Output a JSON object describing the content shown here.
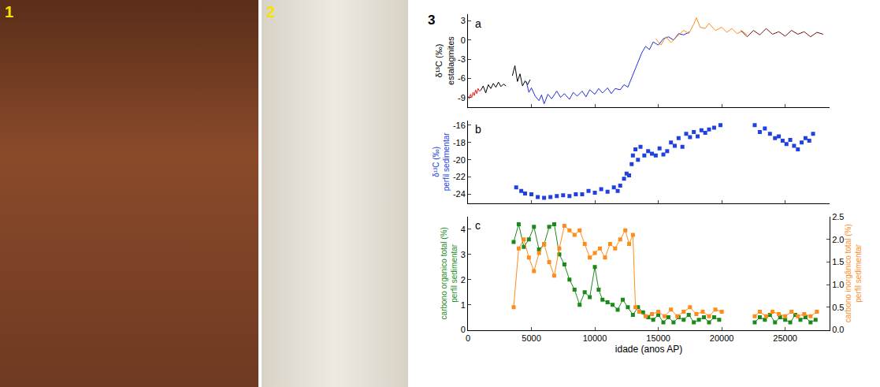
{
  "figure_labels": [
    "1",
    "2",
    "3"
  ],
  "chart_data": [
    {
      "type": "line",
      "label": "a",
      "y_label": [
        "δ¹³C (‰)",
        "estalagmites"
      ],
      "xlim": [
        0,
        28500
      ],
      "xticks": [
        0,
        5000,
        10000,
        15000,
        20000,
        25000
      ],
      "ylim": [
        -10.5,
        4
      ],
      "yticks": [
        -9,
        -6,
        -3,
        0,
        3
      ],
      "tick_labels": "y",
      "grid": false,
      "series": [
        {
          "color": "#e8201c",
          "x": [
            0,
            100,
            200,
            300,
            400,
            500,
            600,
            700,
            800,
            900,
            1000
          ],
          "values": [
            -8.8,
            -9.2,
            -8.5,
            -9.0,
            -8.2,
            -8.7,
            -7.8,
            -8.4,
            -7.6,
            -8.0,
            -7.9
          ]
        },
        {
          "color": "#000000",
          "x": [
            1000,
            1200,
            1400,
            1600,
            1800,
            2000,
            2200,
            2400,
            2600,
            2800,
            3000,
            3200,
            3500,
            3700,
            3900,
            4100,
            4300,
            4500,
            4700,
            4900
          ],
          "values": [
            -7.9,
            -7.2,
            -8.3,
            -7.0,
            -7.6,
            -6.8,
            -7.4,
            -6.6,
            -7.3,
            -6.9,
            -7.2,
            null,
            -5.6,
            -4.0,
            -6.5,
            -5.3,
            -7.2,
            -6.4,
            -7.0,
            -6.2
          ]
        },
        {
          "color": "#1f2fd8",
          "x": [
            4600,
            4800,
            5000,
            5300,
            5600,
            5800,
            6000,
            6300,
            6600,
            7000,
            7300,
            7600,
            8000,
            8300,
            8600,
            9000,
            9300,
            9600,
            10000,
            10300,
            10600,
            11000,
            11300,
            11600,
            12000,
            12300,
            12600,
            12900,
            13200,
            13500,
            13700,
            14000,
            14300,
            14600,
            15000,
            15400,
            15800,
            16200,
            16600,
            17000,
            17500
          ],
          "values": [
            -6.5,
            -8.2,
            -7.5,
            -8.8,
            -9.5,
            -8.6,
            -10.0,
            -8.5,
            -9.2,
            -8.0,
            -9.0,
            -8.4,
            -9.3,
            -8.2,
            -8.8,
            -8.0,
            -8.9,
            -7.8,
            -8.5,
            -7.6,
            -8.3,
            -7.5,
            -8.4,
            -7.6,
            -7.8,
            -7.0,
            -7.4,
            -6.0,
            -4.5,
            -3.0,
            -2.0,
            -1.0,
            -1.5,
            -0.3,
            -0.8,
            0.2,
            0.5,
            0.0,
            1.0,
            0.8,
            1.3
          ]
        },
        {
          "color": "#ff8c1a",
          "x": [
            14800,
            15200,
            15600,
            16000,
            16500,
            17000,
            17400,
            17800,
            18000,
            18300,
            18700,
            19000,
            19500,
            20000,
            20400,
            20800,
            21200,
            21600,
            22000
          ],
          "values": [
            0.2,
            -0.8,
            0.5,
            -0.4,
            0.6,
            1.5,
            1.0,
            2.5,
            3.5,
            2.0,
            1.8,
            2.6,
            1.5,
            2.0,
            1.2,
            1.8,
            1.0,
            1.4,
            0.8
          ]
        },
        {
          "color": "#7a1010",
          "x": [
            21500,
            22000,
            22500,
            23000,
            23500,
            24000,
            24500,
            25000,
            25500,
            26000,
            26500,
            27000,
            27500,
            28000
          ],
          "values": [
            1.5,
            0.5,
            1.5,
            0.8,
            1.8,
            0.9,
            1.3,
            0.6,
            1.5,
            0.9,
            1.3,
            0.5,
            1.2,
            0.9
          ]
        }
      ]
    },
    {
      "type": "scatter",
      "label": "b",
      "y_label": [
        "δ¹³C (‰)",
        "perfil sedimentar"
      ],
      "marker": "square",
      "xlim": [
        0,
        28500
      ],
      "xticks": [
        0,
        5000,
        10000,
        15000,
        20000,
        25000
      ],
      "ylim": [
        -25,
        -15.5
      ],
      "yticks": [
        -24,
        -22,
        -20,
        -18,
        -16
      ],
      "tick_labels": "y",
      "grid": false,
      "series": [
        {
          "color": "#2040e0",
          "x": [
            3800,
            4200,
            4500,
            5000,
            5500,
            6000,
            6500,
            7000,
            7500,
            8000,
            8500,
            9000,
            9500,
            10000,
            10500,
            11000,
            11500,
            11800,
            12000,
            12300,
            12500,
            12700,
            12900,
            13000,
            13200,
            13400,
            13600,
            13900,
            14200,
            14500,
            14800,
            15100,
            15400,
            15700,
            16000,
            16300,
            16600,
            16900,
            17200,
            17500,
            17800,
            18100,
            18400,
            18700,
            19000,
            19400,
            19900,
            22600,
            23000,
            23400,
            23800,
            24200,
            24500,
            24800,
            25100,
            25400,
            25700,
            26000,
            26300,
            26600,
            26900,
            27200
          ],
          "values": [
            -23.2,
            -23.6,
            -23.9,
            -24.0,
            -24.3,
            -24.4,
            -24.3,
            -24.2,
            -24.1,
            -24.2,
            -24.0,
            -24.0,
            -23.6,
            -23.8,
            -23.4,
            -23.7,
            -23.2,
            -23.6,
            -23.0,
            -22.2,
            -21.6,
            -21.8,
            -20.5,
            -19.5,
            -18.8,
            -20.0,
            -18.5,
            -19.5,
            -19.0,
            -19.3,
            -19.5,
            -18.7,
            -19.4,
            -19.0,
            -18.0,
            -18.4,
            -17.5,
            -18.5,
            -17.0,
            -17.4,
            -16.8,
            -17.3,
            -16.6,
            -16.9,
            -16.5,
            -16.3,
            -16.0,
            -16.0,
            -16.8,
            -16.4,
            -17.0,
            -17.5,
            -17.3,
            -17.8,
            -18.2,
            -17.7,
            -18.4,
            -18.8,
            -18.0,
            -17.5,
            -17.8,
            -17.0
          ]
        }
      ]
    },
    {
      "type": "line",
      "label": "c",
      "marker": "square",
      "y_label": [
        "carbono organico total (%)",
        "perfil sedimentar"
      ],
      "y2_label": [
        "carbono inorgânico total (%)",
        "perfil sedimentar"
      ],
      "x_label": "idade (anos AP)",
      "xlim": [
        0,
        28500
      ],
      "xticks": [
        0,
        5000,
        10000,
        15000,
        20000,
        25000
      ],
      "ylim": [
        0,
        4.5
      ],
      "yticks": [
        0,
        1,
        2,
        3,
        4
      ],
      "y2lim": [
        0,
        2.5
      ],
      "y2ticks": [
        {
          "value": 0,
          "label": "0.0"
        },
        0.5,
        {
          "value": 1,
          "label": "1.0"
        },
        1.5,
        {
          "value": 2,
          "label": "2.0"
        },
        2.5
      ],
      "grid": false,
      "series": [
        {
          "color": "#1a8a1a",
          "x": [
            3600,
            4000,
            4400,
            4800,
            5200,
            5600,
            6000,
            6400,
            6800,
            7200,
            7600,
            8000,
            8400,
            8800,
            9200,
            9600,
            10000,
            10300,
            10600,
            11000,
            11400,
            11800,
            12200,
            12600,
            13000,
            13400,
            13800,
            14200,
            14600,
            15000,
            15400,
            15800,
            16200,
            16600,
            17000,
            17400,
            17800,
            18200,
            18600,
            19000,
            19400,
            19800,
            21000,
            22600,
            23000,
            23400,
            23800,
            24200,
            24600,
            25000,
            25400,
            25800,
            26200,
            26600,
            27000,
            27400
          ],
          "values": [
            3.5,
            4.2,
            3.3,
            3.6,
            4.1,
            3.2,
            3.4,
            4.1,
            4.2,
            3.0,
            2.6,
            2.0,
            1.6,
            1.0,
            1.5,
            1.3,
            2.5,
            1.6,
            1.2,
            1.1,
            1.0,
            0.8,
            1.2,
            0.9,
            0.6,
            0.9,
            0.7,
            0.5,
            0.4,
            0.6,
            0.3,
            0.5,
            0.3,
            0.5,
            0.4,
            0.6,
            0.3,
            0.4,
            0.5,
            0.3,
            0.5,
            0.4,
            null,
            0.3,
            0.5,
            0.4,
            0.6,
            0.3,
            0.5,
            0.4,
            0.3,
            0.6,
            0.4,
            0.5,
            0.3,
            0.4
          ]
        },
        {
          "color": "#ff8c1a",
          "axis": "y2",
          "x": [
            3600,
            4000,
            4400,
            4800,
            5200,
            5600,
            6000,
            6400,
            6800,
            7200,
            7600,
            8000,
            8400,
            8800,
            9200,
            9600,
            10000,
            10400,
            10800,
            11200,
            11600,
            12000,
            12400,
            12700,
            13000,
            13200,
            13500,
            14000,
            14500,
            15000,
            15500,
            16000,
            16500,
            17000,
            17500,
            18000,
            18500,
            19000,
            19500,
            20000,
            21000,
            22600,
            23000,
            23500,
            24000,
            24500,
            25000,
            25500,
            26000,
            26500,
            27000,
            27500
          ],
          "values": [
            0.5,
            1.8,
            2.0,
            1.6,
            1.3,
            1.7,
            1.9,
            1.5,
            1.2,
            1.8,
            2.3,
            2.2,
            2.1,
            2.2,
            1.9,
            1.6,
            1.7,
            1.8,
            1.6,
            1.9,
            1.8,
            2.0,
            2.2,
            1.9,
            2.1,
            0.5,
            0.4,
            0.3,
            0.35,
            0.4,
            0.3,
            0.45,
            0.3,
            0.4,
            0.5,
            0.35,
            0.4,
            0.3,
            0.45,
            0.4,
            null,
            0.3,
            0.4,
            0.3,
            0.4,
            0.35,
            0.3,
            0.4,
            0.3,
            0.35,
            0.3,
            0.4
          ]
        }
      ]
    }
  ]
}
